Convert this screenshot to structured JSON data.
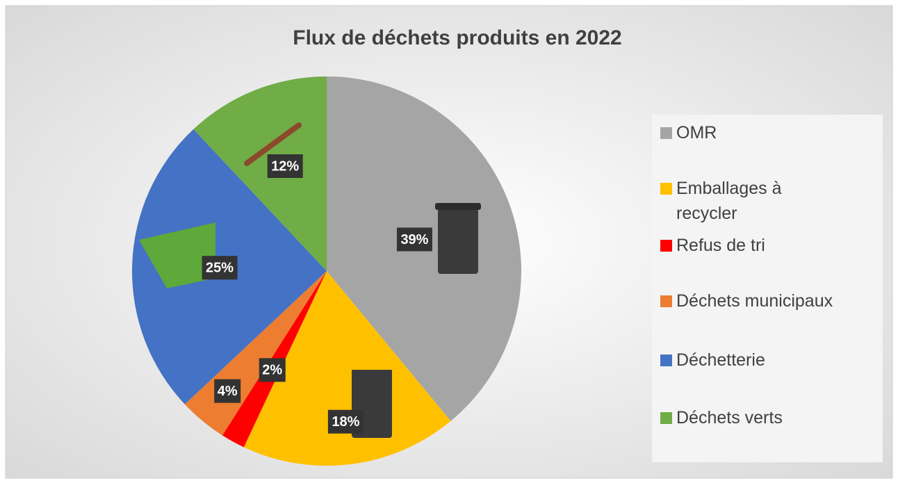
{
  "chart_data": {
    "type": "pie",
    "title": "Flux de déchets produits en 2022",
    "categories": [
      "OMR",
      "Emballages à recycler",
      "Refus de tri",
      "Déchets municipaux",
      "Déchetterie",
      "Déchets verts"
    ],
    "values": [
      39,
      18,
      2,
      4,
      25,
      12
    ],
    "value_labels": [
      "39%",
      "18%",
      "2%",
      "4%",
      "25%",
      "12%"
    ],
    "colors": [
      "#a5a5a5",
      "#ffc000",
      "#ff0000",
      "#ed7d31",
      "#4472c4",
      "#70ad47"
    ],
    "legend": "right"
  }
}
